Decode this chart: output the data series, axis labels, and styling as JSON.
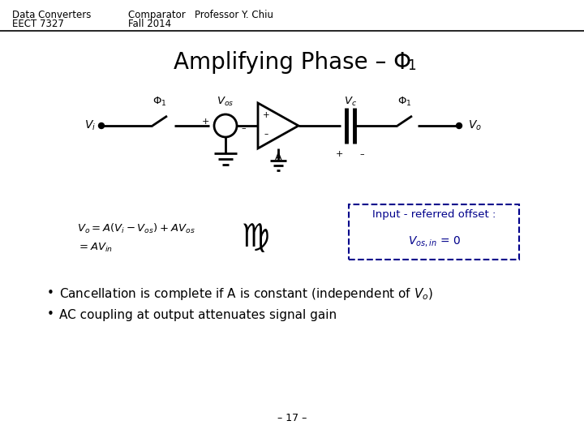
{
  "top_left_line1": "Data Converters",
  "top_left_line2": "EECT 7327",
  "top_center_line1": "Comparator   Professor Y. Chiu",
  "top_center_line2": "Fall 2014",
  "footer": "– 17 –",
  "header_fontsize": 8.5,
  "title_fontsize": 20,
  "circuit_fontsize": 9.5,
  "eq_fontsize": 9.5,
  "bullet_fontsize": 11,
  "footer_fontsize": 9,
  "bg_color": "#ffffff",
  "text_color": "#000000",
  "box_color": "#00008B",
  "line_color": "#000000"
}
